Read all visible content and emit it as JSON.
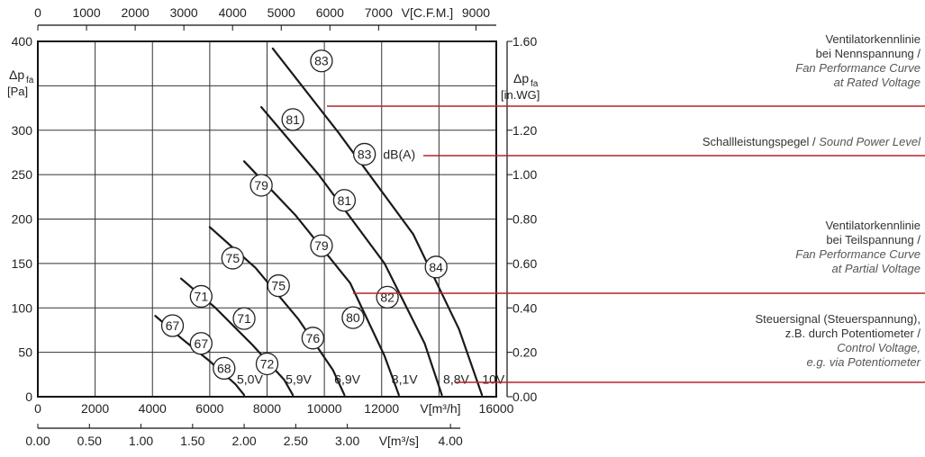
{
  "chart_data": {
    "type": "line",
    "title": "",
    "x_axis_bottom": {
      "label": "V[m³/h]",
      "ticks": [
        "0",
        "2000",
        "4000",
        "6000",
        "8000",
        "10000",
        "12000",
        "16000"
      ],
      "range": [
        0,
        16000
      ]
    },
    "x_axis_top": {
      "label": "V[C.F.M.]",
      "ticks": [
        "0",
        "1000",
        "2000",
        "3000",
        "4000",
        "5000",
        "6000",
        "7000",
        "9000"
      ],
      "range": [
        0,
        9417
      ]
    },
    "x_axis_bottom2": {
      "label": "V[m³/s]",
      "ticks": [
        "0.00",
        "0.50",
        "1.00",
        "1.50",
        "2.00",
        "2.50",
        "3.00",
        "4.00"
      ],
      "range": [
        0,
        4.444
      ]
    },
    "y_axis_left": {
      "label_main": "Δp",
      "label_sub": "fa",
      "unit": "[Pa]",
      "ticks": [
        "0",
        "50",
        "100",
        "150",
        "200",
        "250",
        "300",
        "400"
      ],
      "range": [
        0,
        400
      ]
    },
    "y_axis_right": {
      "label_main": "Δp",
      "label_sub": "fa",
      "unit": "[in.WG]",
      "ticks": [
        "0.00",
        "0.20",
        "0.40",
        "0.60",
        "0.80",
        "1.00",
        "1.20",
        "1.60"
      ],
      "range": [
        0,
        1.6
      ]
    },
    "grid": true,
    "series": [
      {
        "name": "5,0V",
        "x": [
          4100,
          5000,
          6000,
          6900,
          7200
        ],
        "y": [
          91,
          66,
          40,
          14,
          2
        ]
      },
      {
        "name": "5,9V",
        "x": [
          5000,
          6200,
          7500,
          8600,
          8900
        ],
        "y": [
          133,
          100,
          58,
          19,
          2
        ]
      },
      {
        "name": "6,9V",
        "x": [
          6000,
          7600,
          9100,
          10300,
          10700
        ],
        "y": [
          191,
          145,
          87,
          30,
          2
        ]
      },
      {
        "name": "8,1V",
        "x": [
          7200,
          9000,
          10900,
          12100,
          12600
        ],
        "y": [
          265,
          204,
          128,
          46,
          2
        ]
      },
      {
        "name": "8,8V",
        "x": [
          7800,
          9800,
          12100,
          13500,
          14100
        ],
        "y": [
          326,
          250,
          150,
          60,
          2
        ]
      },
      {
        "name": "10V",
        "x": [
          8200,
          10500,
          13100,
          14700,
          15500
        ],
        "y": [
          392,
          297,
          183,
          76,
          2
        ]
      }
    ],
    "sound_labels": [
      {
        "text": "83",
        "x": 9900,
        "y": 378
      },
      {
        "text": "81",
        "x": 8900,
        "y": 312
      },
      {
        "text": "79",
        "x": 7800,
        "y": 238
      },
      {
        "text": "75",
        "x": 6800,
        "y": 156
      },
      {
        "text": "71",
        "x": 5700,
        "y": 113
      },
      {
        "text": "67",
        "x": 4700,
        "y": 80
      },
      {
        "text": "83",
        "x": 11400,
        "y": 273
      },
      {
        "text": "81",
        "x": 10700,
        "y": 221
      },
      {
        "text": "79",
        "x": 9900,
        "y": 170
      },
      {
        "text": "75",
        "x": 8400,
        "y": 125
      },
      {
        "text": "71",
        "x": 7200,
        "y": 88
      },
      {
        "text": "67",
        "x": 5700,
        "y": 60
      },
      {
        "text": "84",
        "x": 13900,
        "y": 146
      },
      {
        "text": "82",
        "x": 12200,
        "y": 112
      },
      {
        "text": "80",
        "x": 11000,
        "y": 89
      },
      {
        "text": "76",
        "x": 9600,
        "y": 66
      },
      {
        "text": "72",
        "x": 8000,
        "y": 37
      },
      {
        "text": "68",
        "x": 6500,
        "y": 32
      }
    ],
    "voltage_labels": [
      {
        "text": "5,0V",
        "x": 7400,
        "y": 20
      },
      {
        "text": "5,9V",
        "x": 9100,
        "y": 20
      },
      {
        "text": "6,9V",
        "x": 10800,
        "y": 20
      },
      {
        "text": "8,1V",
        "x": 12800,
        "y": 20
      },
      {
        "text": "8,8V",
        "x": 14600,
        "y": 20
      },
      {
        "text": "10V",
        "x": 15900,
        "y": 20
      }
    ],
    "dba_label": "dB(A)",
    "annotations": [
      {
        "lines": [
          "Ventilatorkennlinie",
          "bei Nennspannung /"
        ],
        "italic": [
          "Fan Performance Curve",
          "at Rated Voltage"
        ]
      },
      {
        "text": "Schallleistungspegel / ",
        "italic_text": "Sound Power Level"
      },
      {
        "lines": [
          "Ventilatorkennlinie",
          "bei Teilspannung /"
        ],
        "italic": [
          "Fan Performance Curve",
          "at Partial Voltage"
        ]
      },
      {
        "lines": [
          "Steuersignal (Steuerspannung),",
          "z.B. durch Potentiometer /"
        ],
        "italic": [
          "Control Voltage,",
          "e.g. via Potentiometer"
        ]
      }
    ],
    "colors": {
      "curve": "#1a1a1a",
      "grid": "#333333",
      "leader": "#b5242e"
    }
  }
}
